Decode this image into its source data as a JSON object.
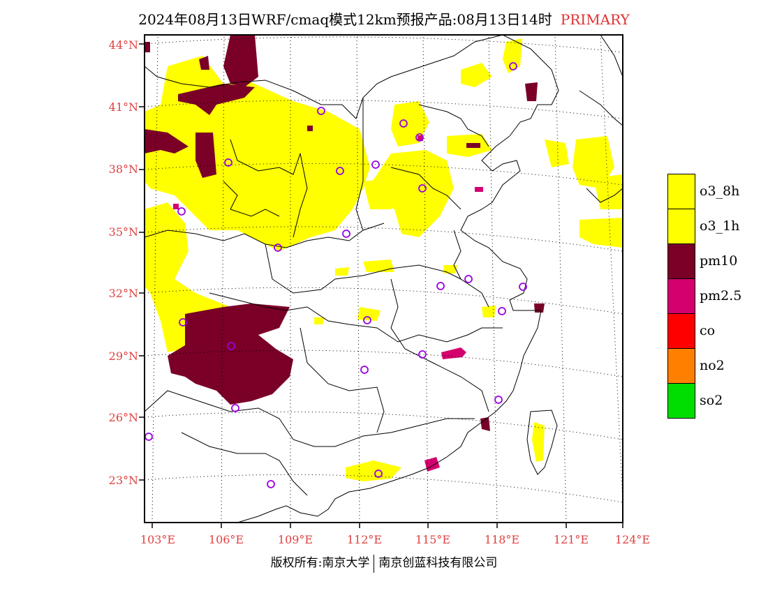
{
  "title": {
    "main": "2024年08月13日WRF/cmaq模式12km预报产品:08月13日14时",
    "tag": "PRIMARY"
  },
  "lat_labels": [
    "44°N",
    "41°N",
    "38°N",
    "35°N",
    "32°N",
    "29°N",
    "26°N",
    "23°N"
  ],
  "lon_labels": [
    "103°E",
    "106°E",
    "109°E",
    "112°E",
    "115°E",
    "118°E",
    "121°E",
    "124°E"
  ],
  "legend": [
    {
      "label": "o3_8h",
      "color": "#ffff00"
    },
    {
      "label": "o3_1h",
      "color": "#ffff00"
    },
    {
      "label": "pm10",
      "color": "#7a0028"
    },
    {
      "label": "pm2.5",
      "color": "#d4006e"
    },
    {
      "label": "co",
      "color": "#ff0000"
    },
    {
      "label": "no2",
      "color": "#ff8000"
    },
    {
      "label": "so2",
      "color": "#00dd00"
    }
  ],
  "footer": {
    "left": "版权所有:南京大学",
    "right": "南京创蓝科技有限公司"
  },
  "colors": {
    "axis_label": "#e04040",
    "station_marker": "#9a00e0"
  }
}
